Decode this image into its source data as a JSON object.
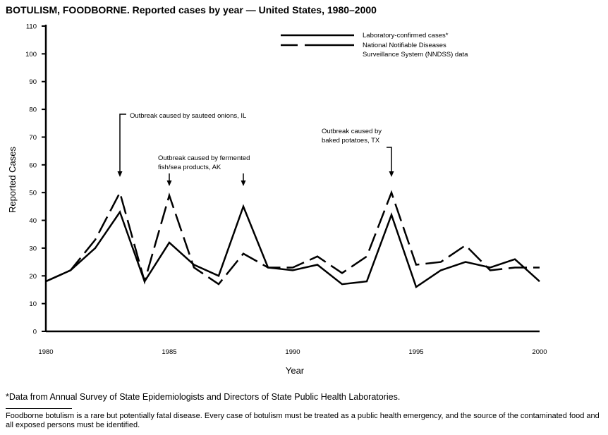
{
  "title": "BOTULISM, FOODBORNE. Reported cases by year — United States, 1980–2000",
  "chart_data": {
    "type": "line",
    "title": "BOTULISM, FOODBORNE. Reported cases by year — United States, 1980–2000",
    "xlabel": "Year",
    "ylabel": "Reported Cases",
    "xlim": [
      1980,
      2000
    ],
    "ylim": [
      0,
      110
    ],
    "xticks": [
      1980,
      1985,
      1990,
      1995,
      2000
    ],
    "yticks": [
      0,
      10,
      20,
      30,
      40,
      50,
      60,
      70,
      80,
      90,
      100,
      110
    ],
    "grid": false,
    "legend_position": "top-right",
    "x": [
      1980,
      1981,
      1982,
      1983,
      1984,
      1985,
      1986,
      1987,
      1988,
      1989,
      1990,
      1991,
      1992,
      1993,
      1994,
      1995,
      1996,
      1997,
      1998,
      1999,
      2000
    ],
    "series": [
      {
        "name": "Laboratory-confirmed cases*",
        "style": "solid",
        "values": [
          18,
          22,
          30,
          43,
          18,
          32,
          24,
          20,
          45,
          23,
          22,
          24,
          17,
          18,
          42,
          16,
          22,
          25,
          23,
          26,
          18
        ]
      },
      {
        "name": "National Notifiable Diseases Surveillance System (NNDSS) data",
        "style": "dashed",
        "values": [
          18,
          22,
          33,
          50,
          18,
          49,
          23,
          17,
          28,
          23,
          23,
          27,
          21,
          27,
          50,
          24,
          25,
          31,
          22,
          23,
          23
        ]
      }
    ],
    "legend": [
      "Laboratory-confirmed cases*",
      "National Notifiable Diseases",
      "Surveillance System (NNDSS) data"
    ],
    "annotations": [
      {
        "lines": [
          "Outbreak caused by sauteed onions, IL"
        ],
        "year": 1983
      },
      {
        "lines": [
          "Outbreak caused by fermented",
          "fish/sea products, AK"
        ],
        "years": [
          1985,
          1988
        ]
      },
      {
        "lines": [
          "Outbreak caused by",
          "baked potatoes, TX"
        ],
        "year": 1994
      }
    ]
  },
  "footnote": "*Data from Annual Survey of State Epidemiologists and Directors of State Public Health Laboratories.",
  "note": "Foodborne botulism is a rare but potentially fatal disease. Every case of botulism must be treated as a public health emergency, and the source of the contaminated food and all exposed persons must be identified."
}
